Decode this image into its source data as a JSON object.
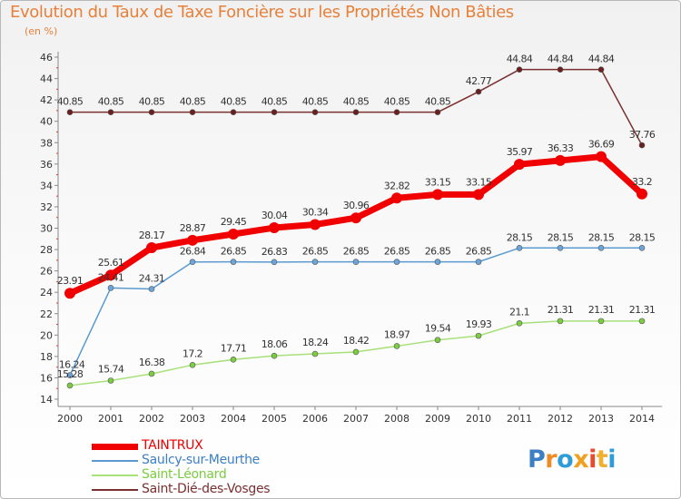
{
  "chart_data": {
    "type": "line",
    "title": "Evolution du Taux de Taxe Foncière sur les Propriétés Non Bâties",
    "unit_label": "(en %)",
    "xlabel": "",
    "ylabel": "",
    "x": [
      "2000",
      "2001",
      "2002",
      "2003",
      "2004",
      "2005",
      "2006",
      "2007",
      "2008",
      "2009",
      "2010",
      "2011",
      "2012",
      "2013",
      "2014"
    ],
    "ylim": [
      14,
      46
    ],
    "yticks": [
      "14",
      "16",
      "18",
      "20",
      "22",
      "24",
      "26",
      "28",
      "30",
      "32",
      "34",
      "36",
      "38",
      "40",
      "42",
      "44",
      "46"
    ],
    "grid": false,
    "series": [
      {
        "name": "TAINTRUX",
        "color": "#f00000",
        "marker_fill": "#f00000",
        "label_color": "#333333",
        "values": [
          23.91,
          25.61,
          28.17,
          28.87,
          29.45,
          30.04,
          30.34,
          30.96,
          32.82,
          33.15,
          33.15,
          35.97,
          36.33,
          36.69,
          33.2
        ],
        "labels": [
          "23.91",
          "25.61",
          "28.17",
          "28.87",
          "29.45",
          "30.04",
          "30.34",
          "30.96",
          "32.82",
          "33.15",
          "33.15",
          "35.97",
          "36.33",
          "36.69",
          "33.2"
        ]
      },
      {
        "name": "Saulcy-sur-Meurthe",
        "color": "#5a9ad0",
        "marker_fill": "#6aa6dc",
        "label_color": "#333333",
        "values": [
          16.24,
          24.41,
          24.31,
          26.84,
          26.85,
          26.83,
          26.85,
          26.85,
          26.85,
          26.85,
          26.85,
          28.15,
          28.15,
          28.15,
          28.15
        ],
        "labels": [
          "16.24",
          "24.41",
          "24.31",
          "26.84",
          "26.85",
          "26.83",
          "26.85",
          "26.85",
          "26.85",
          "26.85",
          "26.85",
          "28.15",
          "28.15",
          "28.15",
          "28.15"
        ]
      },
      {
        "name": "Saint-Léonard",
        "color": "#a8e07a",
        "marker_fill": "#7acc40",
        "label_color": "#333333",
        "values": [
          15.28,
          15.74,
          16.38,
          17.2,
          17.71,
          18.06,
          18.24,
          18.42,
          18.97,
          19.54,
          19.93,
          21.1,
          21.31,
          21.31,
          21.31
        ],
        "labels": [
          "15.28",
          "15.74",
          "16.38",
          "17.2",
          "17.71",
          "18.06",
          "18.24",
          "18.42",
          "18.97",
          "19.54",
          "19.93",
          "21.1",
          "21.31",
          "21.31",
          "21.31"
        ]
      },
      {
        "name": "Saint-Dié-des-Vosges",
        "color": "#7a3030",
        "marker_fill": "#6a2020",
        "label_color": "#333333",
        "values": [
          40.85,
          40.85,
          40.85,
          40.85,
          40.85,
          40.85,
          40.85,
          40.85,
          40.85,
          40.85,
          42.77,
          44.84,
          44.84,
          44.84,
          37.76
        ],
        "labels": [
          "40.85",
          "40.85",
          "40.85",
          "40.85",
          "40.85",
          "40.85",
          "40.85",
          "40.85",
          "40.85",
          "40.85",
          "42.77",
          "44.84",
          "44.84",
          "44.84",
          "37.76"
        ]
      }
    ],
    "legend_position": "bottom-left"
  },
  "logo": {
    "text": "Proxiti",
    "letters": [
      "P",
      "r",
      "o",
      "x",
      "i",
      "t",
      "i"
    ],
    "colors": [
      "#3c7fc4",
      "#f08a24",
      "#2e9cd8",
      "#f0a020",
      "#e84a2a",
      "#f0b030",
      "#2e9cd8"
    ]
  }
}
